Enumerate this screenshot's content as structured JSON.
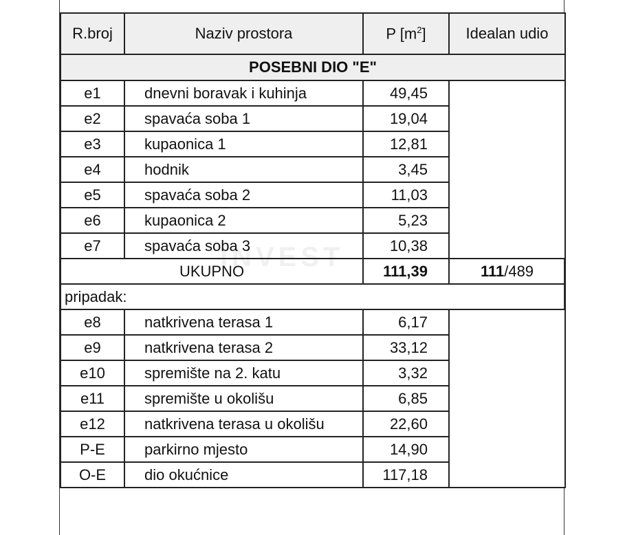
{
  "header": {
    "col1": "R.broj",
    "col2": "Naziv prostora",
    "col3": "P [m",
    "col3_sup": "2",
    "col3_end": "]",
    "col4": "Idealan udio"
  },
  "section_title": "POSEBNI DIO \"E\"",
  "rooms": [
    {
      "id": "e1",
      "name": "dnevni boravak i kuhinja",
      "area": "49,45"
    },
    {
      "id": "e2",
      "name": "spavaća soba 1",
      "area": "19,04"
    },
    {
      "id": "e3",
      "name": "kupaonica 1",
      "area": "12,81"
    },
    {
      "id": "e4",
      "name": "hodnik",
      "area": "3,45"
    },
    {
      "id": "e5",
      "name": "spavaća soba 2",
      "area": "11,03"
    },
    {
      "id": "e6",
      "name": "kupaonica 2",
      "area": "5,23"
    },
    {
      "id": "e7",
      "name": "spavaća soba 3",
      "area": "10,38"
    }
  ],
  "total": {
    "label": "UKUPNO",
    "area": "111,39",
    "share_num": "111",
    "share_den": "/489"
  },
  "appurtenance_label": "pripadak:",
  "appurtenances": [
    {
      "id": "e8",
      "name": "natkrivena terasa 1",
      "area": "6,17"
    },
    {
      "id": "e9",
      "name": "natkrivena terasa 2",
      "area": "33,12"
    },
    {
      "id": "e10",
      "name": "spremište na 2. katu",
      "area": "3,32"
    },
    {
      "id": "e11",
      "name": "spremište u okolišu",
      "area": "6,85"
    },
    {
      "id": "e12",
      "name": "natkrivena terasa u okolišu",
      "area": "22,60"
    },
    {
      "id": "P-E",
      "name": "parkirno mjesto",
      "area": "14,90"
    },
    {
      "id": "O-E",
      "name": "dio okućnice",
      "area": "117,18"
    }
  ],
  "watermark": "INVEST"
}
